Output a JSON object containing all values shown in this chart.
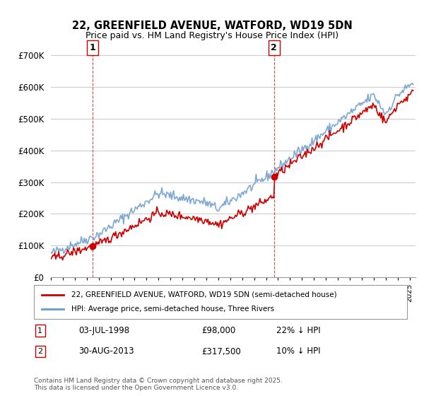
{
  "title_line1": "22, GREENFIELD AVENUE, WATFORD, WD19 5DN",
  "title_line2": "Price paid vs. HM Land Registry's House Price Index (HPI)",
  "ylabel": "",
  "ylim": [
    0,
    750000
  ],
  "yticks": [
    0,
    100000,
    200000,
    300000,
    400000,
    500000,
    600000,
    700000
  ],
  "ytick_labels": [
    "£0",
    "£100K",
    "£200K",
    "£300K",
    "£400K",
    "£500K",
    "£600K",
    "£700K"
  ],
  "xlim_start": 1995.0,
  "xlim_end": 2025.5,
  "legend_line1": "22, GREENFIELD AVENUE, WATFORD, WD19 5DN (semi-detached house)",
  "legend_line2": "HPI: Average price, semi-detached house, Three Rivers",
  "transaction1_label": "1",
  "transaction1_date": "03-JUL-1998",
  "transaction1_price": "£98,000",
  "transaction1_hpi": "22% ↓ HPI",
  "transaction1_year": 1998.5,
  "transaction2_label": "2",
  "transaction2_date": "30-AUG-2013",
  "transaction2_price": "£317,500",
  "transaction2_hpi": "10% ↓ HPI",
  "transaction2_year": 2013.67,
  "footer": "Contains HM Land Registry data © Crown copyright and database right 2025.\nThis data is licensed under the Open Government Licence v3.0.",
  "line_color_property": "#cc0000",
  "line_color_hpi": "#6699cc",
  "marker_color": "#cc0000",
  "vline_color": "#cc0000",
  "background_color": "#ffffff",
  "grid_color": "#cccccc"
}
